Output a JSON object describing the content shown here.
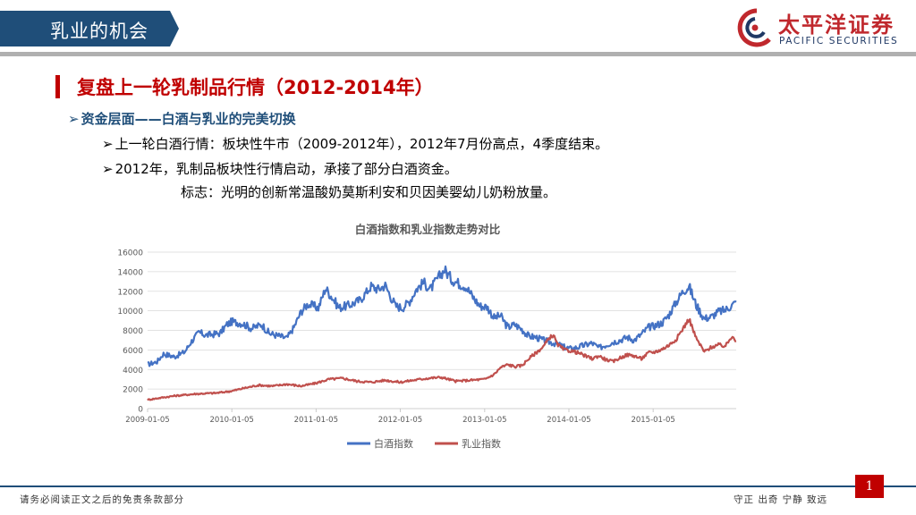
{
  "header": {
    "section_tab": "乳业的机会",
    "logo": {
      "name_cn": "太平洋证券",
      "name_en": "PACIFIC SECURITIES"
    }
  },
  "slide": {
    "title": "复盘上一轮乳制品行情（2012-2014年）",
    "bullets": [
      "资金层面——白酒与乳业的完美切换",
      "上一轮白酒行情：板块性牛市（2009-2012年），2012年7月份高点，4季度结束。",
      "2012年，乳制品板块性行情启动，承接了部分白酒资金。",
      "标志：光明的创新常温酸奶莫斯利安和贝因美婴幼儿奶粉放量。"
    ]
  },
  "footer": {
    "disclaimer": "请务必阅读正文之后的免责条款部分",
    "motto": "守正  出奇  宁静  致远",
    "page": "1"
  },
  "colors": {
    "navy": "#1f4e79",
    "red": "#c00000",
    "series_baijiu": "#4472c4",
    "series_dairy": "#c0504d"
  },
  "chart_data": {
    "type": "line",
    "title": "白酒指数和乳业指数走势对比",
    "xlabel": "",
    "ylabel": "",
    "x_range": [
      "2009-01-05",
      "2015-12-31"
    ],
    "x_ticks": [
      "2009-01-05",
      "2010-01-05",
      "2011-01-05",
      "2012-01-05",
      "2013-01-05",
      "2014-01-05",
      "2015-01-05"
    ],
    "y_ticks": [
      0,
      2000,
      4000,
      6000,
      8000,
      10000,
      12000,
      14000,
      16000
    ],
    "ylim": [
      0,
      16000
    ],
    "grid": true,
    "legend": "bottom",
    "series": [
      {
        "name": "白酒指数",
        "color": "#4472c4",
        "points": [
          [
            "2009-01-05",
            4500
          ],
          [
            "2009-02-15",
            4800
          ],
          [
            "2009-03-15",
            5600
          ],
          [
            "2009-05-01",
            5300
          ],
          [
            "2009-06-15",
            5800
          ],
          [
            "2009-07-15",
            6900
          ],
          [
            "2009-08-15",
            7800
          ],
          [
            "2009-09-15",
            7500
          ],
          [
            "2009-11-15",
            7700
          ],
          [
            "2009-12-15",
            8600
          ],
          [
            "2010-01-05",
            8900
          ],
          [
            "2010-02-20",
            8700
          ],
          [
            "2010-04-01",
            8200
          ],
          [
            "2010-05-15",
            8600
          ],
          [
            "2010-06-15",
            7700
          ],
          [
            "2010-08-01",
            7400
          ],
          [
            "2010-09-01",
            7200
          ],
          [
            "2010-10-01",
            8300
          ],
          [
            "2010-11-01",
            9900
          ],
          [
            "2010-12-01",
            10700
          ],
          [
            "2011-01-15",
            10300
          ],
          [
            "2011-02-15",
            12300
          ],
          [
            "2011-03-15",
            11400
          ],
          [
            "2011-04-15",
            10300
          ],
          [
            "2011-06-01",
            10600
          ],
          [
            "2011-07-15",
            11100
          ],
          [
            "2011-09-01",
            12500
          ],
          [
            "2011-10-01",
            12200
          ],
          [
            "2011-11-01",
            12600
          ],
          [
            "2011-12-15",
            10500
          ],
          [
            "2012-01-15",
            10300
          ],
          [
            "2012-02-15",
            11000
          ],
          [
            "2012-03-15",
            12200
          ],
          [
            "2012-04-15",
            12900
          ],
          [
            "2012-05-15",
            12200
          ],
          [
            "2012-06-15",
            13300
          ],
          [
            "2012-07-15",
            14200
          ],
          [
            "2012-08-15",
            13200
          ],
          [
            "2012-09-15",
            12800
          ],
          [
            "2012-10-15",
            12500
          ],
          [
            "2012-11-15",
            11400
          ],
          [
            "2012-12-15",
            10500
          ],
          [
            "2013-01-15",
            10400
          ],
          [
            "2013-02-15",
            9300
          ],
          [
            "2013-03-15",
            9500
          ],
          [
            "2013-04-15",
            8300
          ],
          [
            "2013-05-15",
            8600
          ],
          [
            "2013-06-15",
            8100
          ],
          [
            "2013-07-15",
            7400
          ],
          [
            "2013-08-15",
            7300
          ],
          [
            "2013-09-15",
            7000
          ],
          [
            "2013-10-15",
            6800
          ],
          [
            "2013-11-15",
            6600
          ],
          [
            "2013-12-15",
            6300
          ],
          [
            "2014-01-15",
            6100
          ],
          [
            "2014-02-15",
            6300
          ],
          [
            "2014-03-15",
            6500
          ],
          [
            "2014-04-15",
            6700
          ],
          [
            "2014-05-15",
            6200
          ],
          [
            "2014-06-15",
            6500
          ],
          [
            "2014-07-15",
            6800
          ],
          [
            "2014-08-15",
            7000
          ],
          [
            "2014-09-15",
            7300
          ],
          [
            "2014-10-15",
            7000
          ],
          [
            "2014-11-15",
            7600
          ],
          [
            "2014-12-15",
            8300
          ],
          [
            "2015-01-15",
            8500
          ],
          [
            "2015-02-15",
            8800
          ],
          [
            "2015-03-15",
            9600
          ],
          [
            "2015-04-15",
            10900
          ],
          [
            "2015-05-15",
            12000
          ],
          [
            "2015-06-10",
            12500
          ],
          [
            "2015-07-10",
            10600
          ],
          [
            "2015-08-15",
            9200
          ],
          [
            "2015-09-15",
            9400
          ],
          [
            "2015-10-15",
            9900
          ],
          [
            "2015-11-15",
            10100
          ],
          [
            "2015-12-20",
            10700
          ],
          [
            "2015-12-31",
            10900
          ]
        ]
      },
      {
        "name": "乳业指数",
        "color": "#c0504d",
        "points": [
          [
            "2009-01-05",
            900
          ],
          [
            "2009-03-01",
            1100
          ],
          [
            "2009-05-01",
            1300
          ],
          [
            "2009-08-01",
            1500
          ],
          [
            "2009-11-01",
            1600
          ],
          [
            "2010-01-05",
            1800
          ],
          [
            "2010-03-01",
            2100
          ],
          [
            "2010-05-01",
            2400
          ],
          [
            "2010-07-01",
            2300
          ],
          [
            "2010-09-01",
            2500
          ],
          [
            "2010-11-01",
            2300
          ],
          [
            "2011-01-05",
            2600
          ],
          [
            "2011-03-01",
            3000
          ],
          [
            "2011-05-01",
            3100
          ],
          [
            "2011-07-01",
            2800
          ],
          [
            "2011-09-01",
            2700
          ],
          [
            "2011-11-01",
            2900
          ],
          [
            "2012-01-05",
            2700
          ],
          [
            "2012-03-01",
            2900
          ],
          [
            "2012-05-01",
            3100
          ],
          [
            "2012-07-01",
            3200
          ],
          [
            "2012-09-01",
            2800
          ],
          [
            "2012-11-01",
            2900
          ],
          [
            "2013-01-05",
            3000
          ],
          [
            "2013-02-15",
            3500
          ],
          [
            "2013-03-15",
            4200
          ],
          [
            "2013-04-15",
            4500
          ],
          [
            "2013-05-15",
            4300
          ],
          [
            "2013-06-15",
            4400
          ],
          [
            "2013-07-15",
            5100
          ],
          [
            "2013-08-15",
            5700
          ],
          [
            "2013-09-15",
            6300
          ],
          [
            "2013-10-15",
            7300
          ],
          [
            "2013-10-30",
            7500
          ],
          [
            "2013-11-15",
            6600
          ],
          [
            "2013-12-15",
            6000
          ],
          [
            "2014-01-15",
            5900
          ],
          [
            "2014-02-15",
            5700
          ],
          [
            "2014-03-15",
            5400
          ],
          [
            "2014-04-15",
            5100
          ],
          [
            "2014-05-15",
            5400
          ],
          [
            "2014-06-15",
            5000
          ],
          [
            "2014-07-15",
            4800
          ],
          [
            "2014-08-15",
            5200
          ],
          [
            "2014-09-15",
            5500
          ],
          [
            "2014-10-15",
            5400
          ],
          [
            "2014-11-15",
            5100
          ],
          [
            "2014-12-15",
            5700
          ],
          [
            "2015-01-15",
            5800
          ],
          [
            "2015-02-15",
            6100
          ],
          [
            "2015-03-15",
            6500
          ],
          [
            "2015-04-15",
            7100
          ],
          [
            "2015-05-15",
            8200
          ],
          [
            "2015-06-10",
            9200
          ],
          [
            "2015-07-10",
            7200
          ],
          [
            "2015-08-15",
            5800
          ],
          [
            "2015-09-15",
            6300
          ],
          [
            "2015-10-15",
            6500
          ],
          [
            "2015-11-15",
            6400
          ],
          [
            "2015-12-15",
            7500
          ],
          [
            "2015-12-31",
            6900
          ]
        ]
      }
    ]
  }
}
